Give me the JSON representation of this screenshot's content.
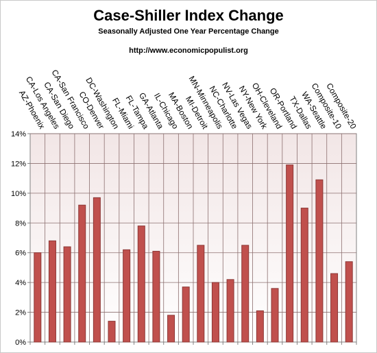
{
  "chart_data": {
    "type": "bar",
    "title": "Case-Shiller Index Change",
    "subtitle": "Seasonally Adjusted One Year Percentage Change",
    "source_url": "http://www.economicpopulist.org",
    "xlabel": "",
    "ylabel": "",
    "ylim": [
      0,
      14
    ],
    "yticks": [
      0,
      2,
      4,
      6,
      8,
      10,
      12,
      14
    ],
    "ytick_labels": [
      "0%",
      "2%",
      "4%",
      "6%",
      "8%",
      "10%",
      "12%",
      "14%"
    ],
    "grid": true,
    "legend": "none",
    "categories": [
      "AZ-Phoenix",
      "CA-Los Angeles",
      "CA-San Diego",
      "CA-San Francisco",
      "CO-Denver",
      "DC-Washington",
      "FL-Miami",
      "FL-Tampa",
      "GA-Atlanta",
      "IL-Chicago",
      "MA-Boston",
      "MI-Detroit",
      "MN-Minneapolis",
      "NC-Charlotte",
      "NV-Las Vegas",
      "NY-New York",
      "OH-Cleveland",
      "OR-Portland",
      "TX-Dallas",
      "WA-Seattle",
      "Composite-10",
      "Composite-20"
    ],
    "values": [
      6.0,
      6.8,
      6.4,
      9.2,
      9.7,
      1.4,
      6.2,
      7.8,
      6.1,
      1.8,
      3.7,
      6.5,
      4.0,
      4.2,
      6.5,
      2.1,
      3.6,
      11.9,
      9.0,
      10.9,
      4.6,
      5.4
    ],
    "colors": {
      "bar_fill": "#c0504d",
      "bar_stroke": "#8c3836",
      "plot_background": "#f2e6e6",
      "gridline": "#8c6f6f"
    }
  }
}
